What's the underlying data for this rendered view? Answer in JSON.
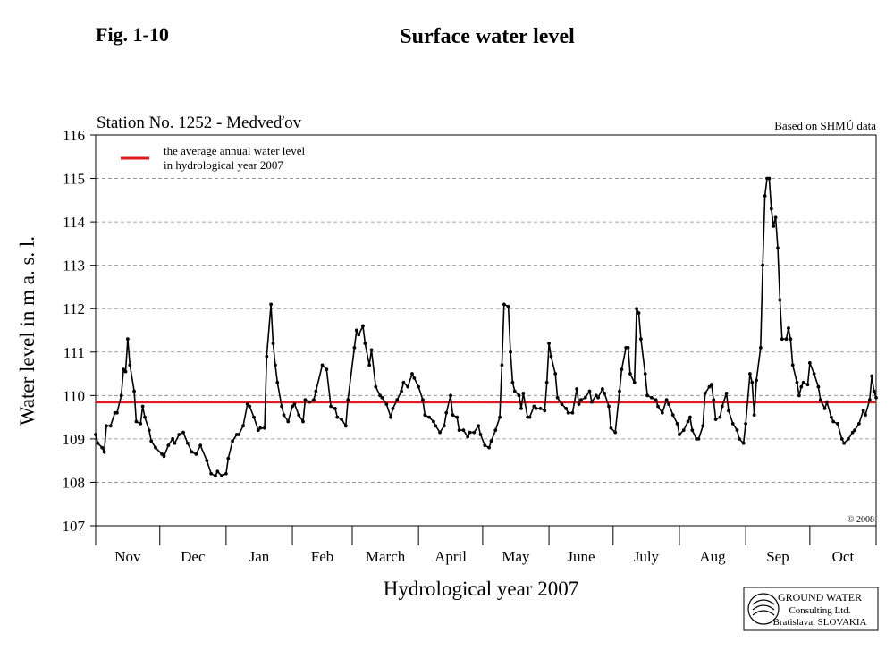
{
  "chart_data": {
    "type": "line",
    "fig_label": "Fig. 1-10",
    "title": "Surface water level",
    "subtitle": "Station No. 1252 - Medveďov",
    "source": "Based on SHMÚ data",
    "copyright": "© 2008",
    "xlabel": "Hydrological year 2007",
    "ylabel": "Water level in m a. s. l.",
    "company": [
      "GROUND WATER",
      "Consulting Ltd.",
      "Bratislava, SLOVAKIA"
    ],
    "categories": [
      "Nov",
      "Dec",
      "Jan",
      "Feb",
      "March",
      "April",
      "May",
      "June",
      "July",
      "Aug",
      "Sep",
      "Oct"
    ],
    "xlim": [
      0,
      365
    ],
    "xticks": [
      0,
      30,
      61,
      92,
      120,
      151,
      181,
      212,
      242,
      273,
      304,
      334,
      365
    ],
    "ylim": [
      107,
      116
    ],
    "yticks": [
      107,
      108,
      109,
      110,
      111,
      112,
      113,
      114,
      115,
      116
    ],
    "grid": true,
    "reference_line": {
      "label_lines": [
        "the average annual water level",
        "in hydrological year 2007"
      ],
      "value": 109.85,
      "color": "#e31a1c"
    },
    "series": [
      {
        "color": "#000000",
        "x": [
          0,
          1,
          3,
          4,
          5,
          7,
          9,
          10,
          12,
          13,
          14,
          15,
          16,
          18,
          19,
          21,
          22,
          23,
          25,
          26,
          28,
          31,
          32,
          34,
          36,
          37,
          39,
          41,
          43,
          45,
          47,
          49,
          52,
          54,
          56,
          57,
          59,
          61,
          62,
          64,
          66,
          67,
          69,
          71,
          72,
          74,
          76,
          77,
          79,
          80,
          82,
          83,
          84,
          85,
          87,
          88,
          90,
          92,
          93,
          95,
          97,
          98,
          100,
          102,
          103,
          106,
          108,
          110,
          112,
          113,
          115,
          117,
          118,
          121,
          122,
          123,
          125,
          126,
          128,
          129,
          131,
          133,
          134,
          136,
          138,
          139,
          141,
          143,
          144,
          146,
          148,
          149,
          151,
          153,
          154,
          156,
          158,
          159,
          161,
          163,
          164,
          166,
          167,
          169,
          170,
          172,
          174,
          175,
          177,
          179,
          180,
          182,
          184,
          185,
          187,
          189,
          190,
          191,
          193,
          194,
          195,
          196,
          198,
          199,
          200,
          202,
          203,
          205,
          206,
          208,
          210,
          211,
          212,
          213,
          215,
          216,
          218,
          220,
          221,
          223,
          225,
          226,
          227,
          229,
          231,
          232,
          234,
          235,
          237,
          238,
          240,
          241,
          243,
          245,
          246,
          248,
          249,
          250,
          252,
          253,
          254,
          255,
          257,
          258,
          260,
          262,
          263,
          265,
          267,
          268,
          270,
          272,
          273,
          275,
          277,
          278,
          279,
          281,
          282,
          284,
          285,
          287,
          288,
          289,
          290,
          292,
          293,
          295,
          296,
          298,
          300,
          301,
          303,
          304,
          306,
          307,
          308,
          309,
          311,
          312,
          313,
          314,
          315,
          316,
          317,
          318,
          319,
          320,
          321,
          323,
          324,
          325,
          326,
          328,
          329,
          330,
          331,
          333,
          334,
          336,
          338,
          339,
          341,
          342,
          344,
          345,
          347,
          349,
          350,
          352,
          354,
          355,
          357,
          359,
          360,
          362,
          363,
          364,
          365
        ],
        "values": [
          109.1,
          108.9,
          108.8,
          108.7,
          109.3,
          109.3,
          109.6,
          109.6,
          110.0,
          110.6,
          110.55,
          111.3,
          110.7,
          110.1,
          109.4,
          109.35,
          109.75,
          109.5,
          109.2,
          108.95,
          108.8,
          108.65,
          108.6,
          108.85,
          109.0,
          108.9,
          109.1,
          109.15,
          108.9,
          108.7,
          108.65,
          108.85,
          108.5,
          108.2,
          108.15,
          108.25,
          108.15,
          108.2,
          108.55,
          108.95,
          109.1,
          109.1,
          109.3,
          109.8,
          109.75,
          109.5,
          109.2,
          109.25,
          109.25,
          110.9,
          112.1,
          111.2,
          110.7,
          110.3,
          109.75,
          109.55,
          109.4,
          109.75,
          109.8,
          109.55,
          109.4,
          109.9,
          109.85,
          109.9,
          110.1,
          110.7,
          110.6,
          109.75,
          109.7,
          109.5,
          109.45,
          109.3,
          109.9,
          111.1,
          111.5,
          111.4,
          111.6,
          111.2,
          110.7,
          111.05,
          110.2,
          110.0,
          109.95,
          109.8,
          109.5,
          109.7,
          109.9,
          110.1,
          110.3,
          110.2,
          110.5,
          110.4,
          110.2,
          109.9,
          109.55,
          109.5,
          109.4,
          109.3,
          109.15,
          109.3,
          109.6,
          110.0,
          109.55,
          109.5,
          109.2,
          109.2,
          109.05,
          109.15,
          109.15,
          109.3,
          109.1,
          108.85,
          108.8,
          108.95,
          109.2,
          109.5,
          110.7,
          112.1,
          112.05,
          111.0,
          110.3,
          110.1,
          110.0,
          109.7,
          110.05,
          109.5,
          109.5,
          109.75,
          109.7,
          109.7,
          109.65,
          110.3,
          111.2,
          110.9,
          110.5,
          109.95,
          109.8,
          109.7,
          109.6,
          109.6,
          110.15,
          109.8,
          109.9,
          109.95,
          110.1,
          109.85,
          110.0,
          109.95,
          110.15,
          110.05,
          109.75,
          109.25,
          109.15,
          110.1,
          110.6,
          111.1,
          111.1,
          110.5,
          110.3,
          112.0,
          111.9,
          111.3,
          110.5,
          110.0,
          109.95,
          109.9,
          109.75,
          109.6,
          109.9,
          109.8,
          109.55,
          109.35,
          109.1,
          109.2,
          109.4,
          109.5,
          109.2,
          109.0,
          109.0,
          109.3,
          110.05,
          110.2,
          110.25,
          109.9,
          109.45,
          109.5,
          109.75,
          110.05,
          109.65,
          109.35,
          109.2,
          109.0,
          108.9,
          109.35,
          110.5,
          110.3,
          109.55,
          110.35,
          111.1,
          113.0,
          114.6,
          115.0,
          115.0,
          114.3,
          113.9,
          114.1,
          113.4,
          112.2,
          111.3,
          111.3,
          111.55,
          111.3,
          110.7,
          110.3,
          110.0,
          110.2,
          110.3,
          110.25,
          110.75,
          110.5,
          110.2,
          109.9,
          109.7,
          109.85,
          109.5,
          109.4,
          109.35,
          109.0,
          108.9,
          109.0,
          109.15,
          109.2,
          109.35,
          109.65,
          109.55,
          109.9,
          110.45,
          110.1,
          109.95
        ]
      }
    ]
  }
}
